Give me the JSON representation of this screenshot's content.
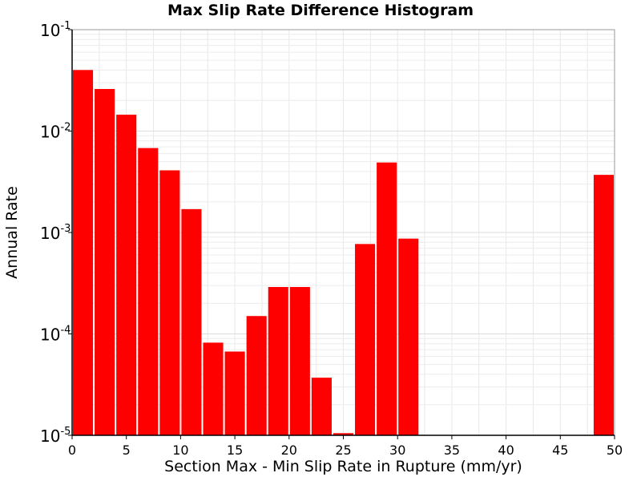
{
  "chart_data": {
    "type": "bar",
    "title": "Max Slip Rate Difference Histogram",
    "xlabel": "Section Max - Min Slip Rate in Rupture (mm/yr)",
    "ylabel": "Annual Rate",
    "xlim": [
      0,
      50
    ],
    "ylim": [
      1e-05,
      0.1
    ],
    "y_scale": "log",
    "bin_width": 2,
    "grid": true,
    "legend": "none",
    "bar_color": "#ff0000",
    "x_ticks": [
      "0",
      "5",
      "10",
      "15",
      "20",
      "25",
      "30",
      "35",
      "40",
      "45",
      "50"
    ],
    "y_ticks": [
      {
        "base": "10",
        "exp": "-5",
        "value": 1e-05
      },
      {
        "base": "10",
        "exp": "-4",
        "value": 0.0001
      },
      {
        "base": "10",
        "exp": "-3",
        "value": 0.001
      },
      {
        "base": "10",
        "exp": "-2",
        "value": 0.01
      },
      {
        "base": "10",
        "exp": "-1",
        "value": 0.1
      }
    ],
    "bars": [
      {
        "x": 1,
        "value": 0.04
      },
      {
        "x": 3,
        "value": 0.026
      },
      {
        "x": 5,
        "value": 0.0145
      },
      {
        "x": 7,
        "value": 0.0068
      },
      {
        "x": 9,
        "value": 0.0041
      },
      {
        "x": 11,
        "value": 0.0017
      },
      {
        "x": 13,
        "value": 8.2e-05
      },
      {
        "x": 15,
        "value": 6.7e-05
      },
      {
        "x": 17,
        "value": 0.00015
      },
      {
        "x": 19,
        "value": 0.00029
      },
      {
        "x": 21,
        "value": 0.00029
      },
      {
        "x": 23,
        "value": 3.7e-05
      },
      {
        "x": 25,
        "value": 1.05e-05
      },
      {
        "x": 27,
        "value": 0.00077
      },
      {
        "x": 29,
        "value": 0.0049
      },
      {
        "x": 31,
        "value": 0.00087
      },
      {
        "x": 49,
        "value": 0.0037
      }
    ]
  }
}
